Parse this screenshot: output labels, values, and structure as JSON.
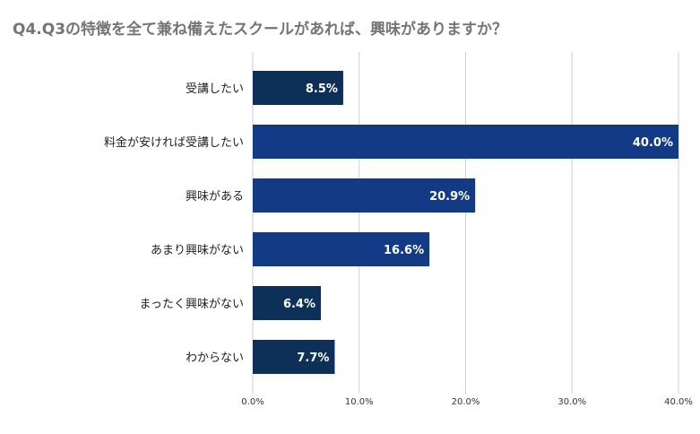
{
  "chart_data": {
    "type": "bar",
    "orientation": "horizontal",
    "title": "Q4.Q3の特徴を全て兼ね備えたスクールがあれば、興味がありますか？",
    "xlabel": "",
    "ylabel": "",
    "xlim": [
      0,
      40
    ],
    "ticks": [
      "0.0%",
      "10.0%",
      "20.0%",
      "30.0%",
      "40.0%"
    ],
    "tick_values": [
      0,
      10,
      20,
      30,
      40
    ],
    "grid": true,
    "legend": "none",
    "categories": [
      "受講したい",
      "料金が安ければ受講したい",
      "興味がある",
      "あまり興味がない",
      "まったく興味がない",
      "わからない"
    ],
    "values": [
      8.5,
      40.0,
      20.9,
      16.6,
      6.4,
      7.7
    ],
    "value_labels": [
      "8.5%",
      "40.0%",
      "20.9%",
      "16.6%",
      "6.4%",
      "7.7%"
    ],
    "colors": [
      "#0c3057",
      "#133a84",
      "#133a84",
      "#133a84",
      "#0c3057",
      "#0c3057"
    ]
  }
}
